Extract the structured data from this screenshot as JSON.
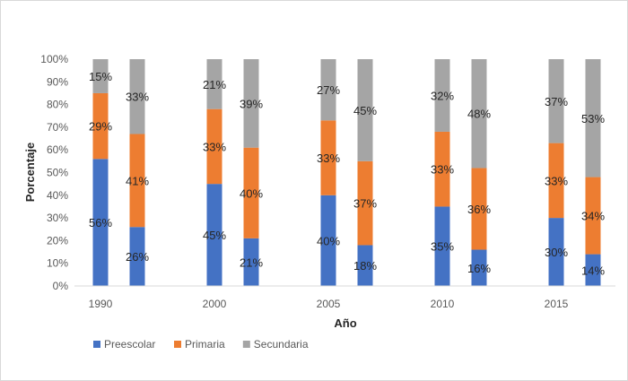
{
  "chart_data": {
    "type": "bar",
    "stacked": true,
    "percent_stacked": true,
    "xlabel": "Año",
    "ylabel": "Porcentaje",
    "ylim": [
      0,
      100
    ],
    "yticks": [
      "0%",
      "10%",
      "20%",
      "30%",
      "40%",
      "50%",
      "60%",
      "70%",
      "80%",
      "90%",
      "100%"
    ],
    "groups": [
      "1990",
      "2000",
      "2005",
      "2010",
      "2015"
    ],
    "grid": false,
    "legend_position": "bottom",
    "series": [
      {
        "name": "Preescolar",
        "color": "#4472c4",
        "values": [
          [
            56,
            26
          ],
          [
            45,
            21
          ],
          [
            40,
            18
          ],
          [
            35,
            16
          ],
          [
            30,
            14
          ]
        ],
        "labels": [
          [
            "56%",
            "26%"
          ],
          [
            "45%",
            "21%"
          ],
          [
            "40%",
            "18%"
          ],
          [
            "35%",
            "16%"
          ],
          [
            "30%",
            "14%"
          ]
        ]
      },
      {
        "name": "Primaria",
        "color": "#ed7d31",
        "values": [
          [
            29,
            41
          ],
          [
            33,
            40
          ],
          [
            33,
            37
          ],
          [
            33,
            36
          ],
          [
            33,
            34
          ]
        ],
        "labels": [
          [
            "29%",
            "41%"
          ],
          [
            "33%",
            "40%"
          ],
          [
            "33%",
            "37%"
          ],
          [
            "33%",
            "36%"
          ],
          [
            "33%",
            "34%"
          ]
        ]
      },
      {
        "name": "Secundaria",
        "color": "#a5a5a5",
        "values": [
          [
            15,
            33
          ],
          [
            21,
            39
          ],
          [
            27,
            45
          ],
          [
            32,
            48
          ],
          [
            37,
            53
          ]
        ],
        "labels": [
          [
            "15%",
            "33%"
          ],
          [
            "21%",
            "39%"
          ],
          [
            "27%",
            "45%"
          ],
          [
            "32%",
            "48%"
          ],
          [
            "37%",
            "53%"
          ]
        ]
      }
    ]
  }
}
